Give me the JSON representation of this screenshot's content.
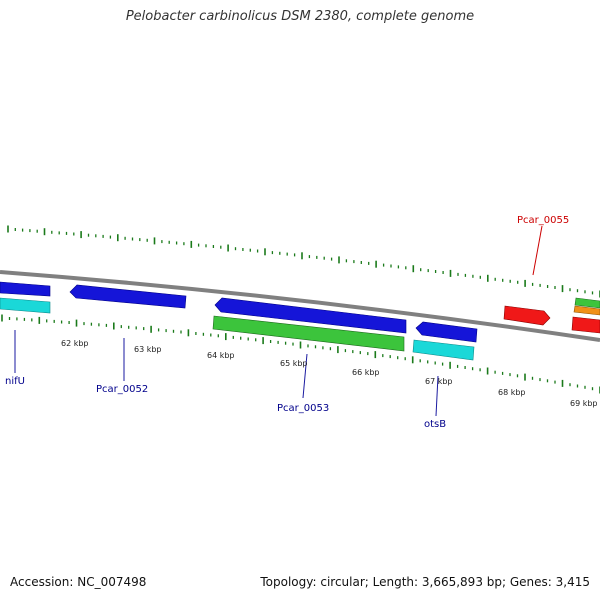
{
  "title": "Pelobacter carbinolicus DSM 2380, complete genome",
  "footer": {
    "accession": "Accession: NC_007498",
    "stats": "Topology: circular; Length: 3,665,893 bp; Genes: 3,415"
  },
  "scale_labels": [
    "62 kbp",
    "63 kbp",
    "64 kbp",
    "65 kbp",
    "66 kbp",
    "67 kbp",
    "68 kbp",
    "69 kbp"
  ],
  "gene_labels": [
    {
      "text": "nifU",
      "color": "#00008b"
    },
    {
      "text": "Pcar_0052",
      "color": "#00008b"
    },
    {
      "text": "Pcar_0053",
      "color": "#00008b"
    },
    {
      "text": "otsB",
      "color": "#00008b"
    },
    {
      "text": "Pcar_0055",
      "color": "#cc0000"
    }
  ],
  "colors": {
    "backbone": "#808080",
    "tick": "#1a7a1a",
    "gene_blue": "#1515d8",
    "gene_cyan": "#1ad8d8",
    "gene_green": "#3cc43c",
    "gene_red": "#f01818",
    "gene_orange": "#f09018"
  }
}
